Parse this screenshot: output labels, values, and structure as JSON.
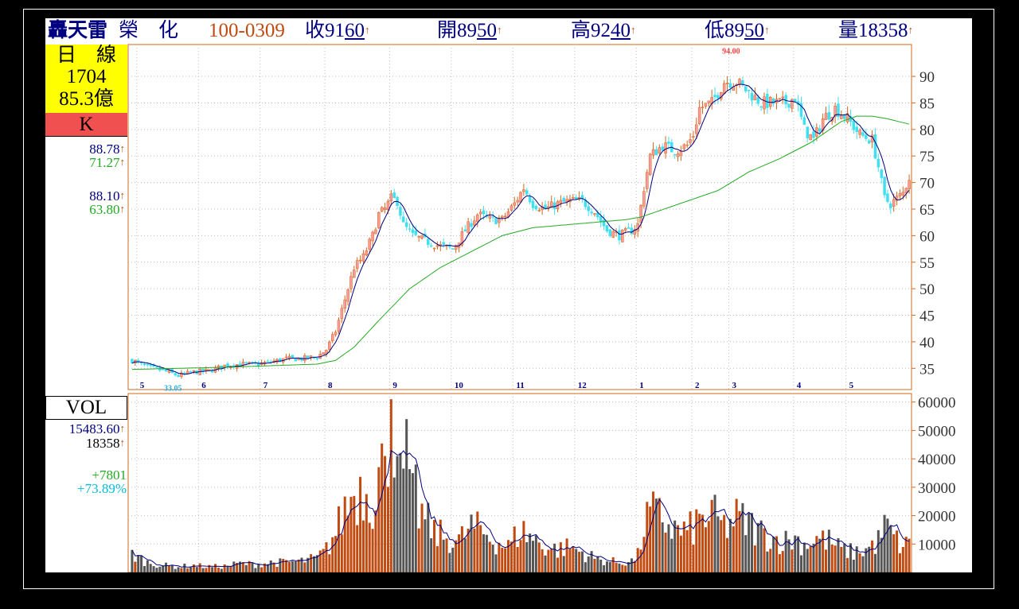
{
  "header": {
    "name": "轟天雷",
    "name2": "榮　化",
    "date": "100-0309",
    "close_label": "收",
    "close_a": "91",
    "close_b": "60",
    "open_label": "開",
    "open_a": "89",
    "open_b": "50",
    "high_label": "高",
    "high_a": "92",
    "high_b": "40",
    "low_label": "低",
    "low_a": "89",
    "low_b": "50",
    "vol_label": "量",
    "vol_value": "18358",
    "up_arrow": "↑"
  },
  "left_panel": {
    "period_label": "日　線",
    "stock_code": "1704",
    "turnover": "85.3億",
    "k_label": "K",
    "ind": [
      {
        "value": "88.78",
        "color": "#000080"
      },
      {
        "value": "71.27",
        "color": "#22aa22"
      },
      {
        "value": "88.10",
        "color": "#000080"
      },
      {
        "value": "63.80",
        "color": "#22aa22"
      }
    ],
    "vol_label": "VOL",
    "vol_ma": "15483.60",
    "vol_last": "18358",
    "vol_change": "+7801",
    "vol_pct": "+73.89%"
  },
  "colors": {
    "up": "#d2691e",
    "up_body": "#ff9a9a",
    "down": "#40e0f0",
    "vol_up": "#c04a10",
    "vol_down": "#555555",
    "ma_short": "#000080",
    "ma_long": "#22aa22",
    "axis": "#d2691e",
    "name": "#000080",
    "date": "#c04a10",
    "k_box": "#f05050",
    "yellow_box": "#ffff00"
  },
  "chart_data": [
    {
      "type": "candlestick",
      "title": "",
      "ylim": [
        31,
        96
      ],
      "yticks": [
        35,
        40,
        45,
        50,
        55,
        60,
        65,
        70,
        75,
        80,
        85,
        90
      ],
      "month_labels": [
        "5",
        "6",
        "7",
        "8",
        "9",
        "10",
        "11",
        "12",
        "1",
        "2",
        "3",
        "4",
        "5"
      ],
      "month_bar_index": [
        2,
        22,
        42,
        63,
        84,
        104,
        124,
        144,
        164,
        182,
        194,
        215,
        232
      ],
      "annotations": [
        {
          "text": "94.00",
          "bar_index": 196,
          "y": 94.0
        },
        {
          "text": "33.05",
          "bar_index": 15,
          "y": 33.05
        }
      ],
      "price_anchors": [
        [
          0,
          36.5
        ],
        [
          5,
          35.2
        ],
        [
          10,
          34.6
        ],
        [
          15,
          33.6
        ],
        [
          20,
          34.3
        ],
        [
          25,
          34.5
        ],
        [
          30,
          35.5
        ],
        [
          35,
          35.8
        ],
        [
          40,
          35.7
        ],
        [
          45,
          36.2
        ],
        [
          50,
          36.8
        ],
        [
          55,
          36.8
        ],
        [
          60,
          37.2
        ],
        [
          63,
          38.5
        ],
        [
          66,
          42
        ],
        [
          69,
          48
        ],
        [
          72,
          54
        ],
        [
          75,
          56
        ],
        [
          78,
          60
        ],
        [
          80,
          64
        ],
        [
          82,
          65
        ],
        [
          84,
          67
        ],
        [
          86,
          66.5
        ],
        [
          88,
          62
        ],
        [
          91,
          60
        ],
        [
          95,
          59
        ],
        [
          100,
          58
        ],
        [
          104,
          57.5
        ],
        [
          108,
          61
        ],
        [
          112,
          64
        ],
        [
          116,
          63
        ],
        [
          120,
          63
        ],
        [
          124,
          66
        ],
        [
          127,
          69
        ],
        [
          130,
          66
        ],
        [
          134,
          65
        ],
        [
          138,
          66
        ],
        [
          142,
          66.5
        ],
        [
          146,
          66.5
        ],
        [
          150,
          64.5
        ],
        [
          154,
          61
        ],
        [
          158,
          60
        ],
        [
          162,
          61
        ],
        [
          164,
          62
        ],
        [
          166,
          69
        ],
        [
          168,
          75
        ],
        [
          172,
          77
        ],
        [
          176,
          76
        ],
        [
          180,
          77
        ],
        [
          182,
          79
        ],
        [
          184,
          84
        ],
        [
          188,
          85
        ],
        [
          192,
          89
        ],
        [
          196,
          89
        ],
        [
          200,
          87
        ],
        [
          204,
          85
        ],
        [
          208,
          85
        ],
        [
          212,
          85
        ],
        [
          215,
          86
        ],
        [
          218,
          80
        ],
        [
          221,
          78
        ],
        [
          224,
          82
        ],
        [
          228,
          84
        ],
        [
          232,
          82
        ],
        [
          236,
          79
        ],
        [
          240,
          78
        ],
        [
          242,
          73
        ],
        [
          244,
          67
        ],
        [
          246,
          66
        ],
        [
          248,
          67
        ],
        [
          250,
          68
        ],
        [
          252,
          71
        ]
      ],
      "ma_long_anchors": [
        [
          0,
          34.8
        ],
        [
          30,
          35.2
        ],
        [
          60,
          35.8
        ],
        [
          66,
          36.5
        ],
        [
          72,
          39
        ],
        [
          80,
          44
        ],
        [
          90,
          50
        ],
        [
          100,
          54
        ],
        [
          110,
          57
        ],
        [
          120,
          60
        ],
        [
          130,
          61.5
        ],
        [
          140,
          62
        ],
        [
          150,
          62.5
        ],
        [
          160,
          63
        ],
        [
          165,
          63.5
        ],
        [
          170,
          64.5
        ],
        [
          180,
          66.5
        ],
        [
          190,
          68.5
        ],
        [
          200,
          72
        ],
        [
          210,
          74.5
        ],
        [
          220,
          77.5
        ],
        [
          225,
          79.5
        ],
        [
          230,
          81.5
        ],
        [
          235,
          82.5
        ],
        [
          240,
          82.5
        ],
        [
          245,
          82
        ],
        [
          252,
          81
        ]
      ],
      "ma_short_label": "88.78",
      "ma_long_label": "71.27"
    },
    {
      "type": "bar",
      "title": "Volume",
      "ylim": [
        0,
        63000
      ],
      "yticks": [
        10000,
        20000,
        30000,
        40000,
        50000,
        60000
      ],
      "volume_anchors": [
        [
          0,
          6500
        ],
        [
          5,
          3500
        ],
        [
          10,
          2500
        ],
        [
          15,
          2000
        ],
        [
          20,
          2500
        ],
        [
          25,
          2000
        ],
        [
          30,
          2200
        ],
        [
          35,
          3200
        ],
        [
          40,
          2800
        ],
        [
          45,
          3500
        ],
        [
          50,
          3500
        ],
        [
          55,
          4000
        ],
        [
          60,
          5000
        ],
        [
          63,
          8000
        ],
        [
          66,
          14000
        ],
        [
          69,
          22000
        ],
        [
          72,
          28000
        ],
        [
          75,
          30000
        ],
        [
          78,
          26000
        ],
        [
          80,
          35000
        ],
        [
          82,
          42000
        ],
        [
          84,
          40000
        ],
        [
          86,
          34000
        ],
        [
          88,
          28000
        ],
        [
          90,
          26000
        ],
        [
          94,
          20000
        ],
        [
          98,
          14000
        ],
        [
          102,
          12000
        ],
        [
          106,
          11000
        ],
        [
          110,
          16000
        ],
        [
          114,
          14000
        ],
        [
          118,
          11000
        ],
        [
          122,
          9000
        ],
        [
          126,
          15000
        ],
        [
          130,
          12000
        ],
        [
          134,
          9000
        ],
        [
          138,
          8000
        ],
        [
          142,
          9000
        ],
        [
          146,
          7000
        ],
        [
          150,
          5000
        ],
        [
          154,
          4000
        ],
        [
          158,
          3500
        ],
        [
          162,
          4000
        ],
        [
          164,
          6000
        ],
        [
          166,
          16000
        ],
        [
          168,
          21000
        ],
        [
          172,
          19000
        ],
        [
          176,
          15000
        ],
        [
          180,
          14000
        ],
        [
          184,
          18000
        ],
        [
          188,
          20000
        ],
        [
          192,
          16000
        ],
        [
          196,
          19000
        ],
        [
          200,
          17000
        ],
        [
          204,
          14000
        ],
        [
          208,
          12000
        ],
        [
          212,
          11000
        ],
        [
          215,
          12000
        ],
        [
          218,
          10000
        ],
        [
          222,
          12000
        ],
        [
          226,
          11000
        ],
        [
          230,
          8000
        ],
        [
          234,
          7000
        ],
        [
          238,
          8000
        ],
        [
          242,
          11000
        ],
        [
          244,
          16000
        ],
        [
          246,
          14000
        ],
        [
          248,
          11000
        ],
        [
          250,
          9000
        ],
        [
          252,
          10000
        ]
      ],
      "volume_spikes": [
        [
          84,
          61000
        ],
        [
          89,
          54000
        ],
        [
          82,
          41000
        ],
        [
          86,
          41000
        ],
        [
          92,
          38000
        ]
      ]
    }
  ]
}
